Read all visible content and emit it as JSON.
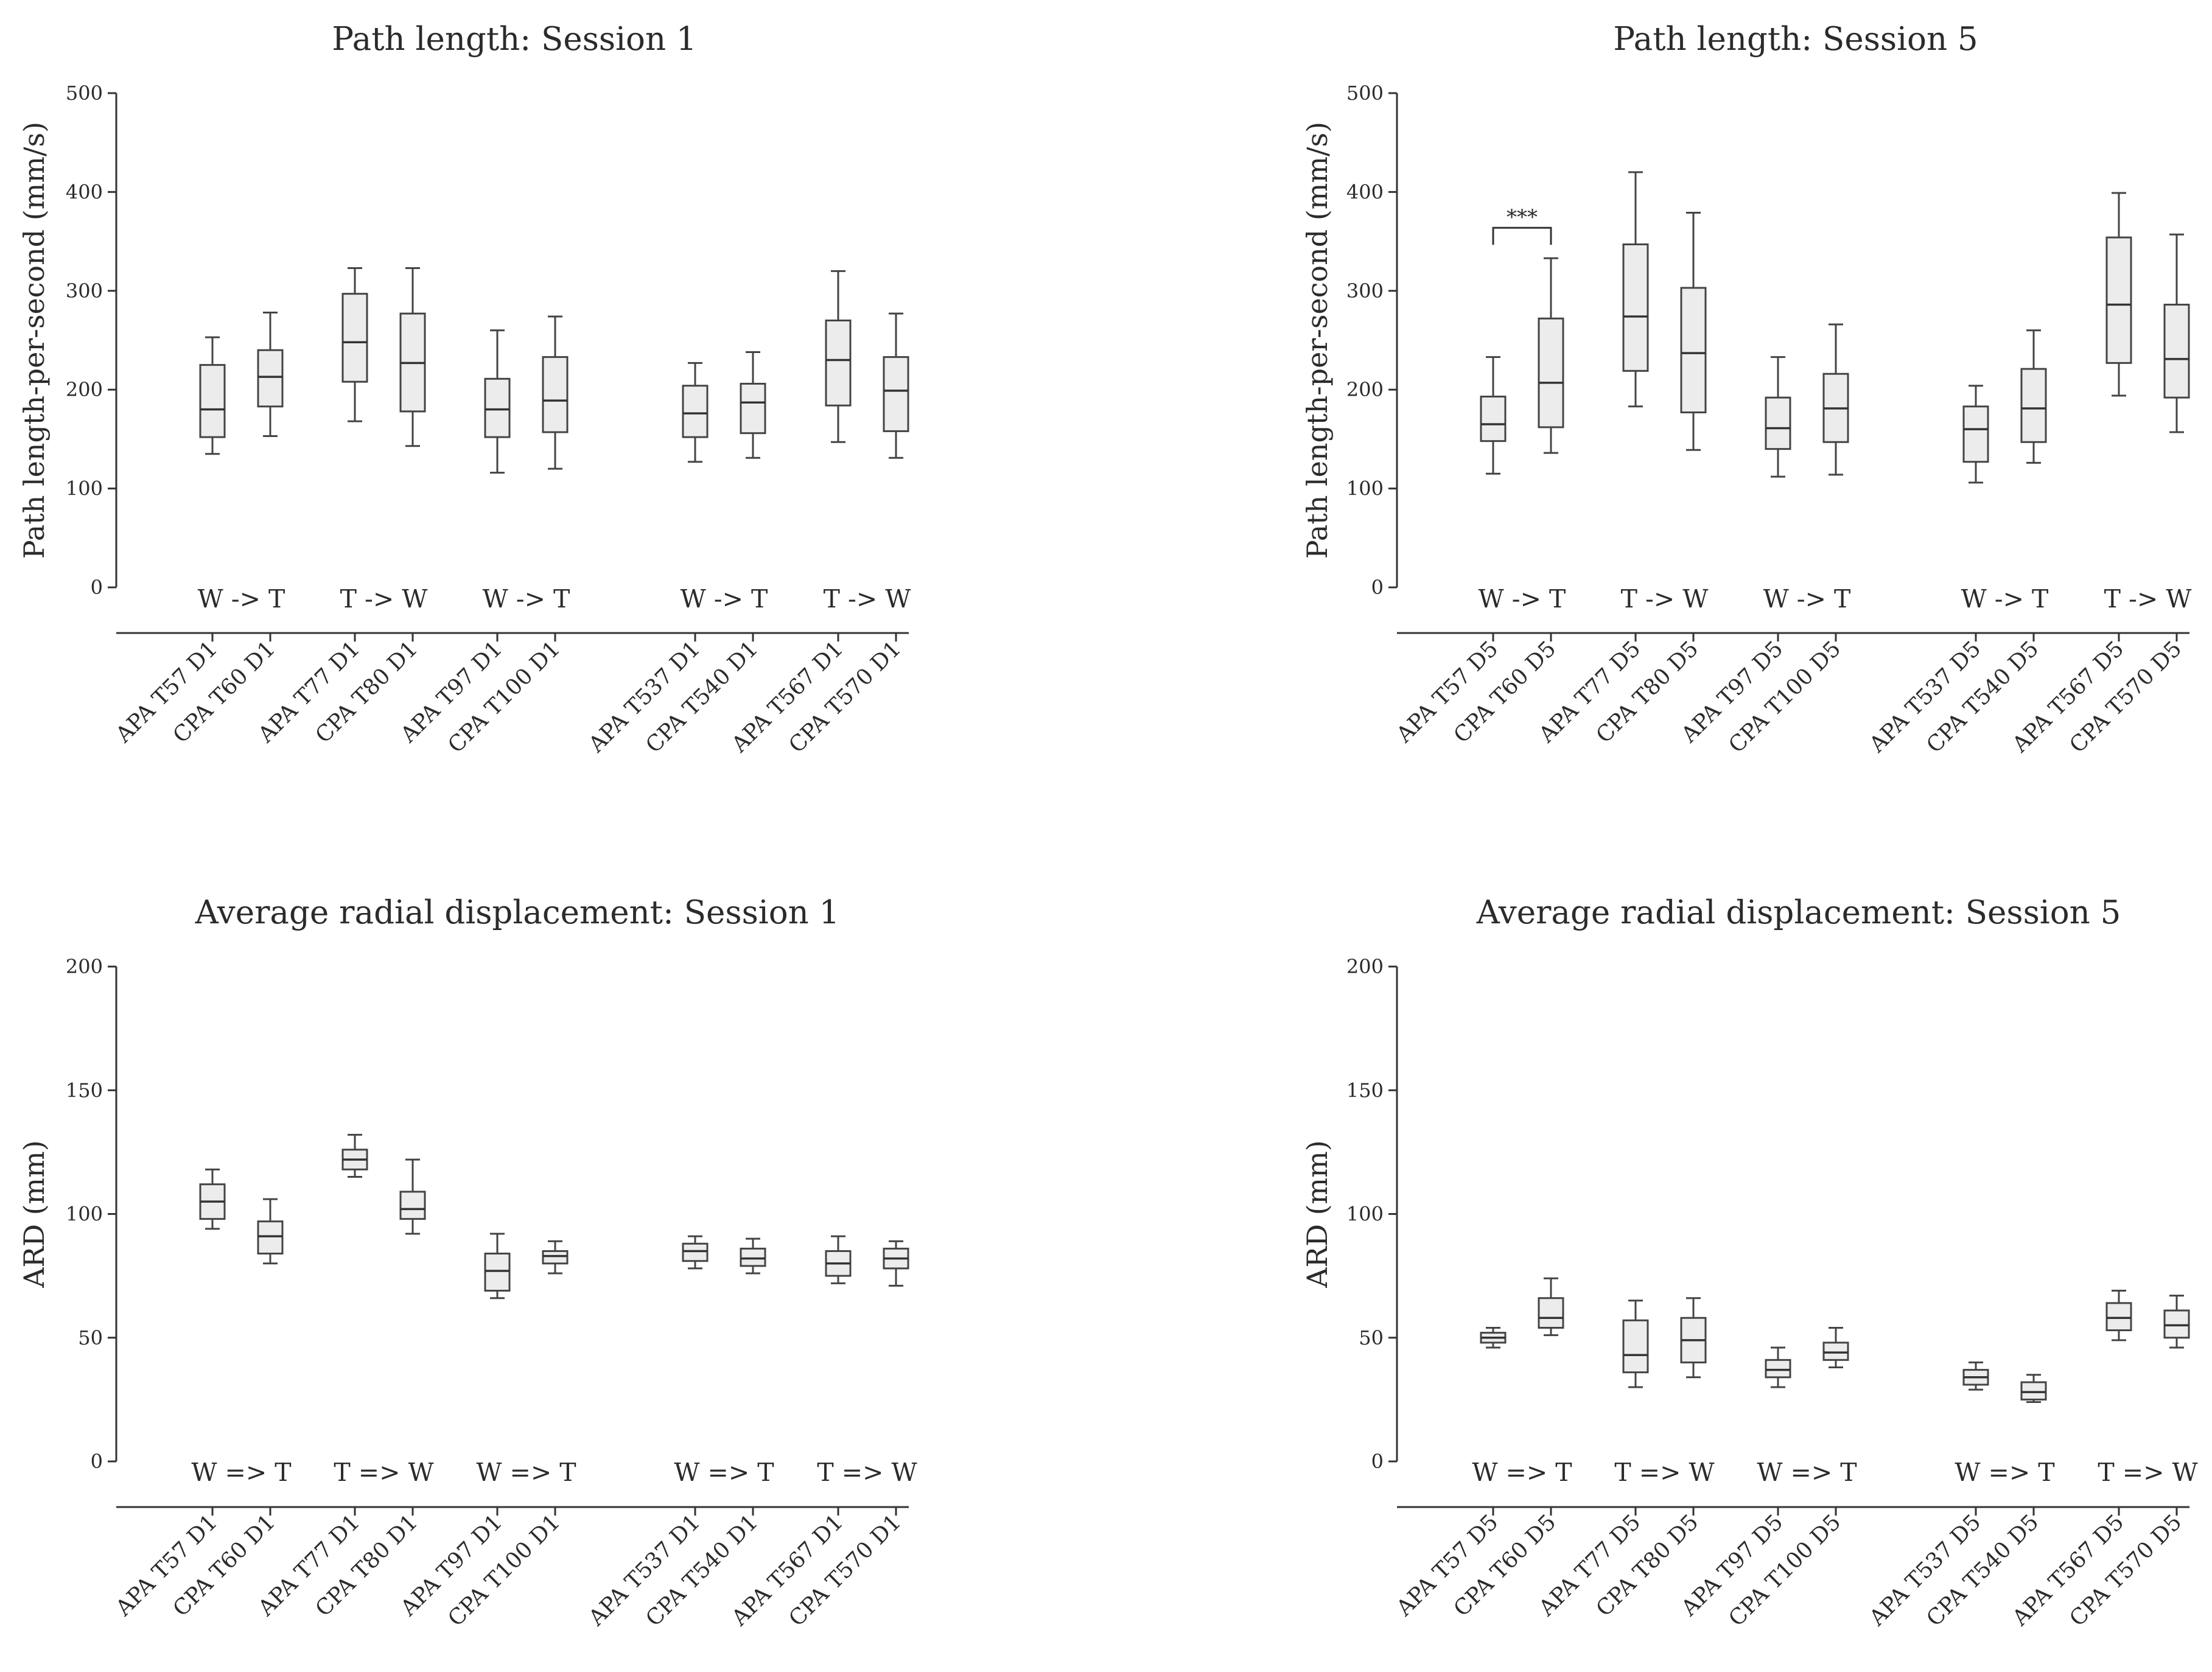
{
  "chart_data": [
    {
      "type": "box",
      "title": "Path length: Session 1",
      "ylabel": "Path length-per-second (mm/s)",
      "xlabel": "",
      "ylim": [
        0,
        500
      ],
      "yticks": [
        0,
        100,
        200,
        300,
        400,
        500
      ],
      "categories": [
        "APA T57 D1",
        "CPA T60 D1",
        "APA T77 D1",
        "CPA T80 D1",
        "APA T97 D1",
        "CPA T100 D1",
        "APA T537 D1",
        "CPA T540 D1",
        "APA T567 D1",
        "CPA T570 D1"
      ],
      "groups": [
        "W -> T",
        "T -> W",
        "W -> T",
        "W -> T",
        "T -> W"
      ],
      "boxes": [
        {
          "min": 135,
          "q1": 152,
          "median": 180,
          "q3": 225,
          "max": 253
        },
        {
          "min": 153,
          "q1": 183,
          "median": 213,
          "q3": 240,
          "max": 278
        },
        {
          "min": 168,
          "q1": 208,
          "median": 248,
          "q3": 297,
          "max": 323
        },
        {
          "min": 143,
          "q1": 178,
          "median": 227,
          "q3": 277,
          "max": 323
        },
        {
          "min": 116,
          "q1": 152,
          "median": 180,
          "q3": 211,
          "max": 260
        },
        {
          "min": 120,
          "q1": 157,
          "median": 189,
          "q3": 233,
          "max": 274
        },
        {
          "min": 127,
          "q1": 152,
          "median": 176,
          "q3": 204,
          "max": 227
        },
        {
          "min": 131,
          "q1": 156,
          "median": 187,
          "q3": 206,
          "max": 238
        },
        {
          "min": 147,
          "q1": 184,
          "median": 230,
          "q3": 270,
          "max": 320
        },
        {
          "min": 131,
          "q1": 158,
          "median": 199,
          "q3": 233,
          "max": 277
        }
      ],
      "significance": []
    },
    {
      "type": "box",
      "title": "Path length: Session 5",
      "ylabel": "Path length-per-second (mm/s)",
      "xlabel": "",
      "ylim": [
        0,
        500
      ],
      "yticks": [
        0,
        100,
        200,
        300,
        400,
        500
      ],
      "categories": [
        "APA T57 D5",
        "CPA T60 D5",
        "APA T77 D5",
        "CPA T80 D5",
        "APA T97 D5",
        "CPA T100 D5",
        "APA T537 D5",
        "CPA T540 D5",
        "APA T567 D5",
        "CPA T570 D5"
      ],
      "groups": [
        "W -> T",
        "T -> W",
        "W -> T",
        "W -> T",
        "T -> W"
      ],
      "boxes": [
        {
          "min": 115,
          "q1": 148,
          "median": 165,
          "q3": 193,
          "max": 233
        },
        {
          "min": 136,
          "q1": 162,
          "median": 207,
          "q3": 272,
          "max": 333
        },
        {
          "min": 183,
          "q1": 219,
          "median": 274,
          "q3": 347,
          "max": 420
        },
        {
          "min": 139,
          "q1": 177,
          "median": 237,
          "q3": 303,
          "max": 379
        },
        {
          "min": 112,
          "q1": 140,
          "median": 161,
          "q3": 192,
          "max": 233
        },
        {
          "min": 114,
          "q1": 147,
          "median": 181,
          "q3": 216,
          "max": 266
        },
        {
          "min": 106,
          "q1": 127,
          "median": 160,
          "q3": 183,
          "max": 204
        },
        {
          "min": 126,
          "q1": 147,
          "median": 181,
          "q3": 221,
          "max": 260
        },
        {
          "min": 194,
          "q1": 227,
          "median": 286,
          "q3": 354,
          "max": 399
        },
        {
          "min": 157,
          "q1": 192,
          "median": 231,
          "q3": 286,
          "max": 357
        }
      ],
      "significance": [
        {
          "from": 0,
          "to": 1,
          "label": "***"
        }
      ]
    },
    {
      "type": "box",
      "title": "Average radial displacement: Session 1",
      "ylabel": "ARD (mm)",
      "xlabel": "",
      "ylim": [
        0,
        200
      ],
      "yticks": [
        0,
        50,
        100,
        150,
        200
      ],
      "categories": [
        "APA T57 D1",
        "CPA T60 D1",
        "APA T77 D1",
        "CPA T80 D1",
        "APA T97 D1",
        "CPA T100 D1",
        "APA T537 D1",
        "CPA T540 D1",
        "APA T567 D1",
        "CPA T570 D1"
      ],
      "groups": [
        "W => T",
        "T => W",
        "W => T",
        "W => T",
        "T => W"
      ],
      "boxes": [
        {
          "min": 94,
          "q1": 98,
          "median": 105,
          "q3": 112,
          "max": 118
        },
        {
          "min": 80,
          "q1": 84,
          "median": 91,
          "q3": 97,
          "max": 106
        },
        {
          "min": 115,
          "q1": 118,
          "median": 122,
          "q3": 126,
          "max": 132
        },
        {
          "min": 92,
          "q1": 98,
          "median": 102,
          "q3": 109,
          "max": 122
        },
        {
          "min": 66,
          "q1": 69,
          "median": 77,
          "q3": 84,
          "max": 92
        },
        {
          "min": 76,
          "q1": 80,
          "median": 83,
          "q3": 85,
          "max": 89
        },
        {
          "min": 78,
          "q1": 81,
          "median": 85,
          "q3": 88,
          "max": 91
        },
        {
          "min": 76,
          "q1": 79,
          "median": 82,
          "q3": 86,
          "max": 90
        },
        {
          "min": 72,
          "q1": 75,
          "median": 80,
          "q3": 85,
          "max": 91
        },
        {
          "min": 71,
          "q1": 78,
          "median": 82,
          "q3": 86,
          "max": 89
        }
      ],
      "significance": []
    },
    {
      "type": "box",
      "title": "Average radial displacement: Session 5",
      "ylabel": "ARD (mm)",
      "xlabel": "",
      "ylim": [
        0,
        200
      ],
      "yticks": [
        0,
        50,
        100,
        150,
        200
      ],
      "categories": [
        "APA T57 D5",
        "CPA T60 D5",
        "APA T77 D5",
        "CPA T80 D5",
        "APA T97 D5",
        "CPA T100 D5",
        "APA T537 D5",
        "CPA T540 D5",
        "APA T567 D5",
        "CPA T570 D5"
      ],
      "groups": [
        "W => T",
        "T => W",
        "W => T",
        "W => T",
        "T => W"
      ],
      "boxes": [
        {
          "min": 46,
          "q1": 48,
          "median": 50,
          "q3": 52,
          "max": 54
        },
        {
          "min": 51,
          "q1": 54,
          "median": 58,
          "q3": 66,
          "max": 74
        },
        {
          "min": 30,
          "q1": 36,
          "median": 43,
          "q3": 57,
          "max": 65
        },
        {
          "min": 34,
          "q1": 40,
          "median": 49,
          "q3": 58,
          "max": 66
        },
        {
          "min": 30,
          "q1": 34,
          "median": 37,
          "q3": 41,
          "max": 46
        },
        {
          "min": 38,
          "q1": 41,
          "median": 44,
          "q3": 48,
          "max": 54
        },
        {
          "min": 29,
          "q1": 31,
          "median": 34,
          "q3": 37,
          "max": 40
        },
        {
          "min": 24,
          "q1": 25,
          "median": 28,
          "q3": 32,
          "max": 35
        },
        {
          "min": 49,
          "q1": 53,
          "median": 58,
          "q3": 64,
          "max": 69
        },
        {
          "min": 46,
          "q1": 50,
          "median": 55,
          "q3": 61,
          "max": 67
        }
      ],
      "significance": []
    }
  ]
}
